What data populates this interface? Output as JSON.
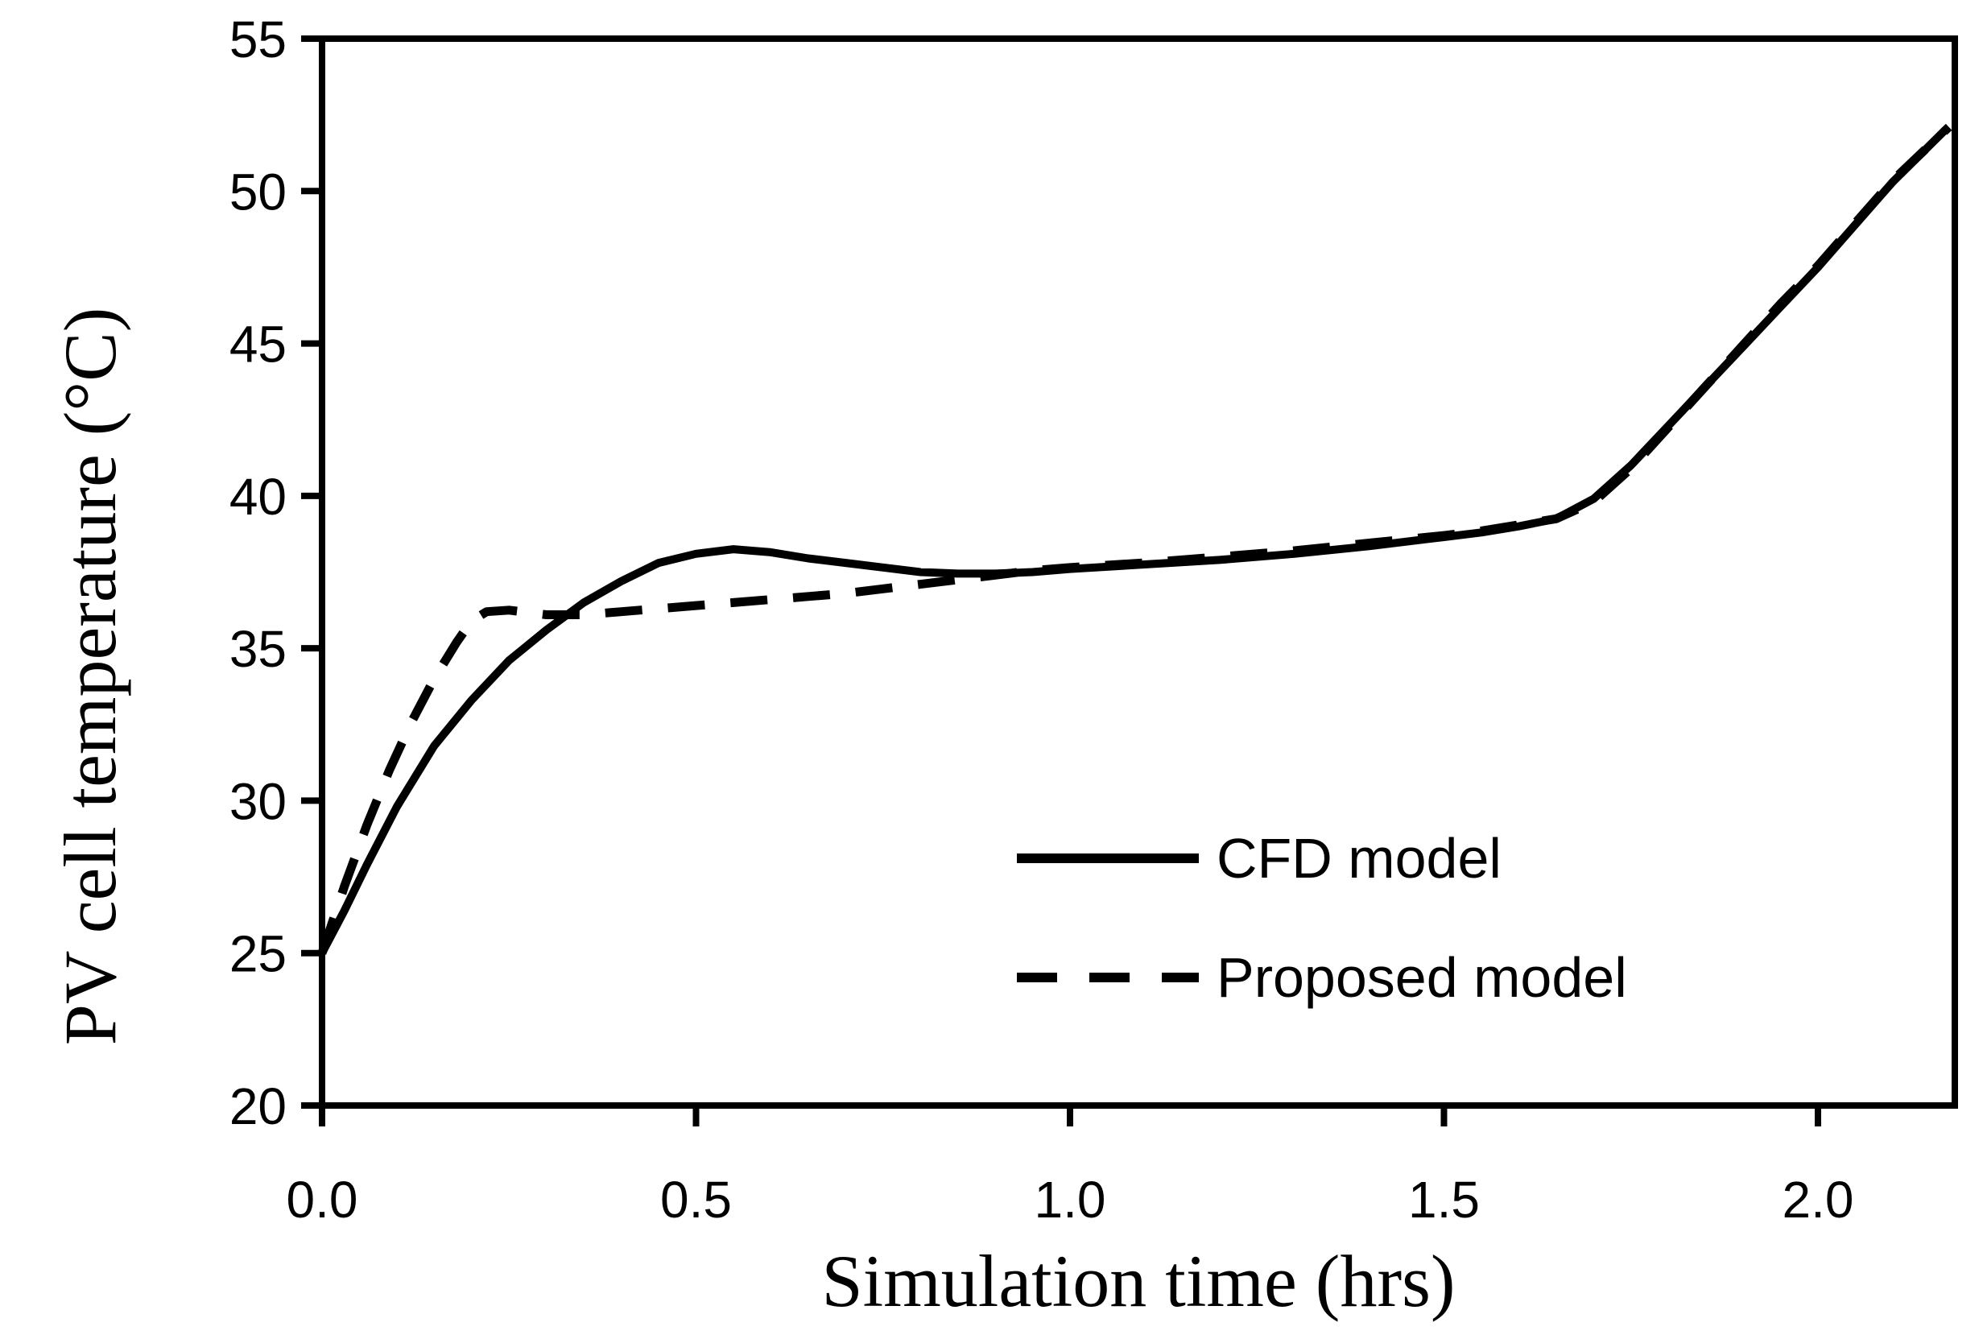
{
  "colors": {
    "line": "#000000",
    "background": "#ffffff"
  },
  "legend": {
    "items": [
      {
        "label": "CFD model",
        "style": "solid"
      },
      {
        "label": "Proposed model",
        "style": "dashed"
      }
    ]
  },
  "chart_data": {
    "type": "line",
    "title": "",
    "xlabel": "Simulation time (hrs)",
    "ylabel": "PV cell temperature (°C)",
    "xlim": [
      0,
      2.183
    ],
    "ylim": [
      20,
      55
    ],
    "grid": false,
    "legend_position": "inside lower right",
    "xticks": [
      0.0,
      0.5,
      1.0,
      1.5,
      2.0
    ],
    "xtick_labels": [
      "0.0",
      "0.5",
      "1.0",
      "1.5",
      "2.0"
    ],
    "yticks": [
      20,
      25,
      30,
      35,
      40,
      45,
      50,
      55
    ],
    "ytick_labels": [
      "20",
      "25",
      "30",
      "35",
      "40",
      "45",
      "50",
      "55"
    ],
    "series": [
      {
        "name": "CFD model",
        "style": "solid",
        "points": [
          [
            0.0,
            25.0
          ],
          [
            0.03,
            26.4
          ],
          [
            0.06,
            27.9
          ],
          [
            0.1,
            29.8
          ],
          [
            0.15,
            31.8
          ],
          [
            0.2,
            33.3
          ],
          [
            0.25,
            34.6
          ],
          [
            0.3,
            35.6
          ],
          [
            0.35,
            36.5
          ],
          [
            0.4,
            37.2
          ],
          [
            0.45,
            37.8
          ],
          [
            0.5,
            38.1
          ],
          [
            0.55,
            38.25
          ],
          [
            0.6,
            38.15
          ],
          [
            0.65,
            37.95
          ],
          [
            0.7,
            37.8
          ],
          [
            0.75,
            37.65
          ],
          [
            0.8,
            37.5
          ],
          [
            0.85,
            37.45
          ],
          [
            0.9,
            37.45
          ],
          [
            0.95,
            37.5
          ],
          [
            1.0,
            37.6
          ],
          [
            1.1,
            37.75
          ],
          [
            1.2,
            37.9
          ],
          [
            1.3,
            38.1
          ],
          [
            1.4,
            38.35
          ],
          [
            1.5,
            38.65
          ],
          [
            1.55,
            38.8
          ],
          [
            1.6,
            39.0
          ],
          [
            1.65,
            39.25
          ],
          [
            1.7,
            39.9
          ],
          [
            1.75,
            41.0
          ],
          [
            1.8,
            42.3
          ],
          [
            1.85,
            43.6
          ],
          [
            1.9,
            44.9
          ],
          [
            1.95,
            46.2
          ],
          [
            2.0,
            47.5
          ],
          [
            2.05,
            48.9
          ],
          [
            2.1,
            50.3
          ],
          [
            2.17,
            52.0
          ]
        ]
      },
      {
        "name": "Proposed model",
        "style": "dashed",
        "points": [
          [
            0.0,
            25.0
          ],
          [
            0.03,
            27.2
          ],
          [
            0.06,
            29.2
          ],
          [
            0.09,
            31.0
          ],
          [
            0.12,
            32.6
          ],
          [
            0.15,
            34.0
          ],
          [
            0.18,
            35.2
          ],
          [
            0.2,
            35.9
          ],
          [
            0.22,
            36.2
          ],
          [
            0.25,
            36.25
          ],
          [
            0.3,
            36.1
          ],
          [
            0.35,
            36.1
          ],
          [
            0.4,
            36.2
          ],
          [
            0.45,
            36.3
          ],
          [
            0.5,
            36.4
          ],
          [
            0.55,
            36.5
          ],
          [
            0.6,
            36.6
          ],
          [
            0.65,
            36.7
          ],
          [
            0.7,
            36.8
          ],
          [
            0.75,
            36.95
          ],
          [
            0.8,
            37.1
          ],
          [
            0.85,
            37.25
          ],
          [
            0.9,
            37.4
          ],
          [
            0.95,
            37.55
          ],
          [
            1.0,
            37.65
          ],
          [
            1.1,
            37.8
          ],
          [
            1.2,
            38.0
          ],
          [
            1.3,
            38.2
          ],
          [
            1.4,
            38.45
          ],
          [
            1.5,
            38.7
          ],
          [
            1.55,
            38.85
          ],
          [
            1.6,
            39.05
          ],
          [
            1.65,
            39.25
          ],
          [
            1.7,
            39.8
          ],
          [
            1.75,
            40.9
          ],
          [
            1.8,
            42.25
          ],
          [
            1.85,
            43.6
          ],
          [
            1.9,
            44.95
          ],
          [
            1.95,
            46.3
          ],
          [
            2.0,
            47.55
          ],
          [
            2.05,
            48.95
          ],
          [
            2.1,
            50.35
          ],
          [
            2.175,
            52.1
          ]
        ]
      }
    ]
  }
}
